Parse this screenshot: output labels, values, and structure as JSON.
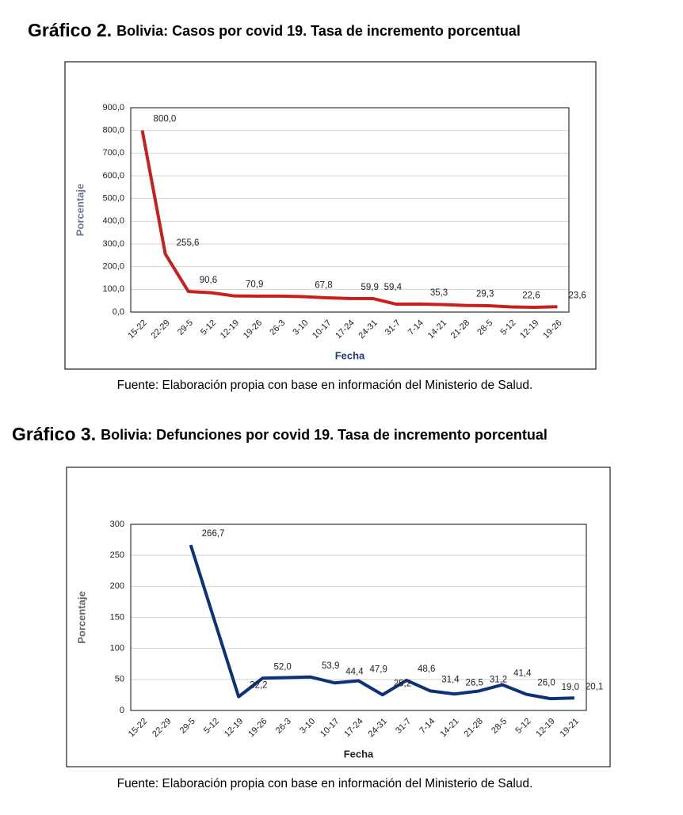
{
  "chart_data": [
    {
      "type": "line",
      "label": "Gráfico 2.",
      "title": "Bolivia: Casos por covid 19. Tasa de incremento porcentual",
      "source": "Fuente: Elaboración propia con base en información del Ministerio de Salud.",
      "x_label": "Fecha",
      "y_label": "Porcentaje",
      "color": "#c8201c",
      "grid": true,
      "categories": [
        "15-22",
        "22-29",
        "29-5",
        "5-12",
        "12-19",
        "19-26",
        "26-3",
        "3-10",
        "10-17",
        "17-24",
        "24-31",
        "31-7",
        "7-14",
        "14-21",
        "21-28",
        "28-5",
        "5-12",
        "12-19",
        "19-26"
      ],
      "values": [
        800,
        255.6,
        90.6,
        85,
        70.9,
        70,
        70,
        67.8,
        63,
        59.9,
        59.4,
        35,
        35.3,
        33,
        29.3,
        28,
        22.6,
        21,
        23.6
      ],
      "value_labels": [
        "800,0",
        "255,6",
        "90,6",
        null,
        "70,9",
        null,
        null,
        "67,8",
        null,
        "59,9",
        "59,4",
        null,
        "35,3",
        null,
        "29,3",
        null,
        "22,6",
        null,
        "23,6"
      ],
      "ylim": [
        0,
        900
      ],
      "yticks": [
        {
          "value": 0,
          "label": "0,0"
        },
        {
          "value": 100,
          "label": "100,0"
        },
        {
          "value": 200,
          "label": "200,0"
        },
        {
          "value": 300,
          "label": "300,0"
        },
        {
          "value": 400,
          "label": "400,0"
        },
        {
          "value": 500,
          "label": "500,0"
        },
        {
          "value": 600,
          "label": "600,0"
        },
        {
          "value": 700,
          "label": "700,0"
        },
        {
          "value": 800,
          "label": "800,0"
        },
        {
          "value": 900,
          "label": "900,0"
        }
      ]
    },
    {
      "type": "line",
      "label": "Gráfico 3.",
      "title": "Bolivia: Defunciones por covid 19. Tasa de incremento porcentual",
      "source": "Fuente: Elaboración propia con base en información del Ministerio de Salud.",
      "x_label": "Fecha",
      "y_label": "Porcentaje",
      "color": "#0c3277",
      "grid": true,
      "categories": [
        "15-22",
        "22-29",
        "29-5",
        "5-12",
        "12-19",
        "19-26",
        "26-3",
        "3-10",
        "10-17",
        "17-24",
        "24-31",
        "31-7",
        "7-14",
        "14-21",
        "21-28",
        "28-5",
        "5-12",
        "12-19",
        "19-21"
      ],
      "values": [
        null,
        null,
        266.7,
        144,
        22.2,
        52.0,
        53,
        53.9,
        44.4,
        47.9,
        25.2,
        48.6,
        31.4,
        26.5,
        31.2,
        41.4,
        26.0,
        19.0,
        20.1
      ],
      "value_labels": [
        null,
        null,
        "266,7",
        null,
        "22,2",
        "52,0",
        null,
        "53,9",
        "44,4",
        "47,9",
        "25,2",
        "48,6",
        "31,4",
        "26,5",
        "31,2",
        "41,4",
        "26,0",
        "19,0",
        "20,1"
      ],
      "ylim": [
        0,
        300
      ],
      "yticks": [
        0,
        50,
        100,
        150,
        200,
        250,
        300
      ]
    }
  ]
}
